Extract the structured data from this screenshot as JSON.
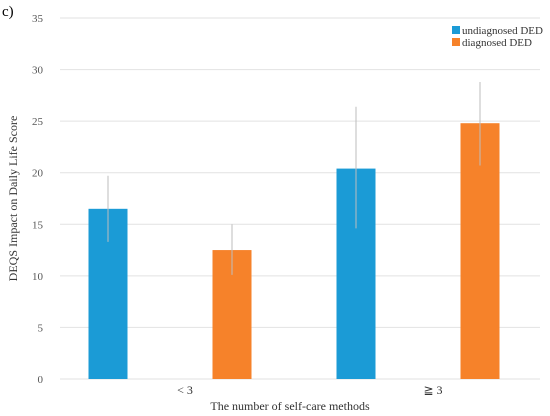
{
  "panel_label": "c)",
  "colors": {
    "undiagnosed": "#1b9bd6",
    "diagnosed": "#f6822a",
    "grid": "#e2e2e2",
    "errbar": "#bdbdbd"
  },
  "chart_data": {
    "type": "bar",
    "title": "",
    "xlabel": "The number of self-care methods",
    "ylabel": "DEQS Impact on Daily Life Score",
    "ylim": [
      0,
      35
    ],
    "yticks": [
      0,
      5,
      10,
      15,
      20,
      25,
      30,
      35
    ],
    "grid": true,
    "legend_position": "top-right",
    "categories": [
      "< 3",
      "≧ 3"
    ],
    "series": [
      {
        "name": "undiagnosed DED",
        "color": "#1b9bd6",
        "values": [
          16.5,
          20.4
        ],
        "err_low": [
          13.3,
          14.6
        ],
        "err_high": [
          19.7,
          26.4
        ]
      },
      {
        "name": "diagnosed DED",
        "color": "#f6822a",
        "values": [
          12.5,
          24.8
        ],
        "err_low": [
          10.1,
          20.7
        ],
        "err_high": [
          15.0,
          28.8
        ]
      }
    ]
  }
}
